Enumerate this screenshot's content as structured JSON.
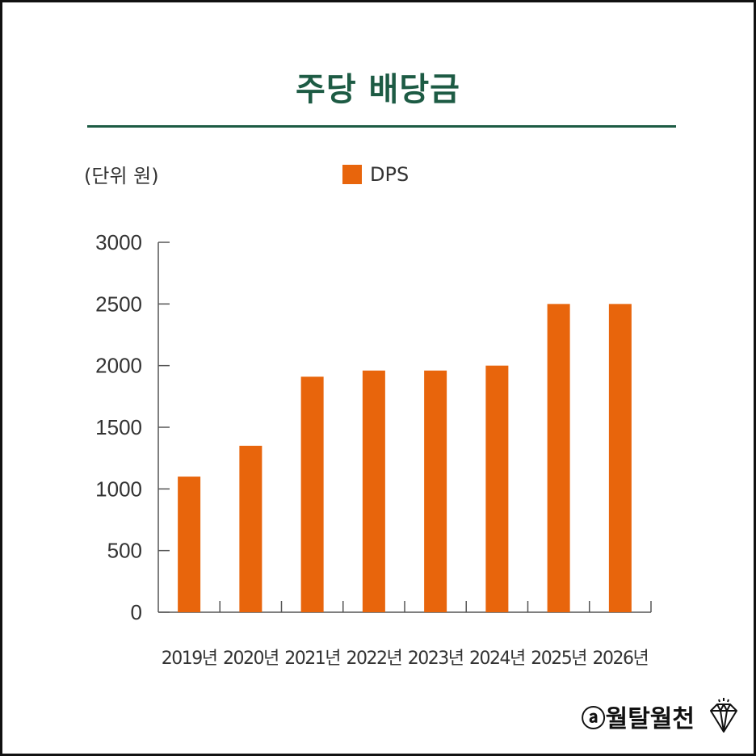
{
  "title": "주당 배당금",
  "unit_label": "(단위 원)",
  "legend": {
    "label": "DPS",
    "color": "#e8650c"
  },
  "watermark": {
    "text": "ⓐ월탈월천",
    "icon": "diamond-icon"
  },
  "colors": {
    "title": "#1d5b44",
    "bar": "#e8650c",
    "axis": "#555555",
    "text": "#333333"
  },
  "chart_data": {
    "type": "bar",
    "categories": [
      "2019년",
      "2020년",
      "2021년",
      "2022년",
      "2023년",
      "2024년",
      "2025년",
      "2026년"
    ],
    "series": [
      {
        "name": "DPS",
        "values": [
          1100,
          1350,
          1910,
          1960,
          1960,
          2000,
          2500,
          2500
        ]
      }
    ],
    "title": "주당 배당금",
    "ylabel": "(단위 원)",
    "xlabel": "",
    "ylim": [
      0,
      3000
    ],
    "yticks": [
      0,
      500,
      1000,
      1500,
      2000,
      2500,
      3000
    ],
    "grid": false,
    "legend_position": "top"
  }
}
